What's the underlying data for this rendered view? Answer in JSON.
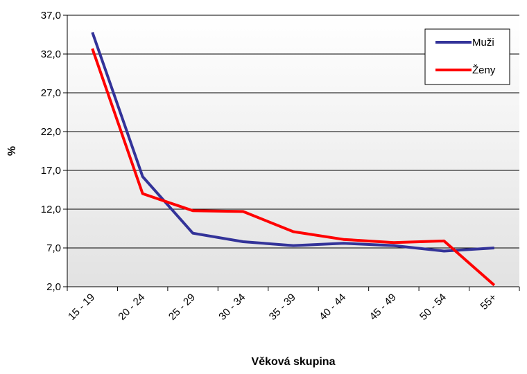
{
  "chart_data": {
    "type": "line",
    "xlabel": "Věková skupina",
    "ylabel": "%",
    "ylim": [
      2.0,
      37.0
    ],
    "y_ticks": [
      "2,0",
      "7,0",
      "12,0",
      "17,0",
      "22,0",
      "27,0",
      "32,0",
      "37,0"
    ],
    "categories": [
      "15 - 19",
      "20 - 24",
      "25 - 29",
      "30 - 34",
      "35 - 39",
      "40 - 44",
      "45 - 49",
      "50 - 54",
      "55+"
    ],
    "grid": "horizontal",
    "legend_position": "top-right",
    "series": [
      {
        "name": "Muži",
        "color": "#333399",
        "values": [
          34.8,
          16.2,
          8.9,
          7.8,
          7.3,
          7.6,
          7.3,
          6.6,
          7.0
        ]
      },
      {
        "name": "Ženy",
        "color": "#ff0000",
        "values": [
          32.7,
          14.0,
          11.8,
          11.7,
          9.1,
          8.1,
          7.7,
          7.9,
          2.2
        ]
      }
    ]
  }
}
